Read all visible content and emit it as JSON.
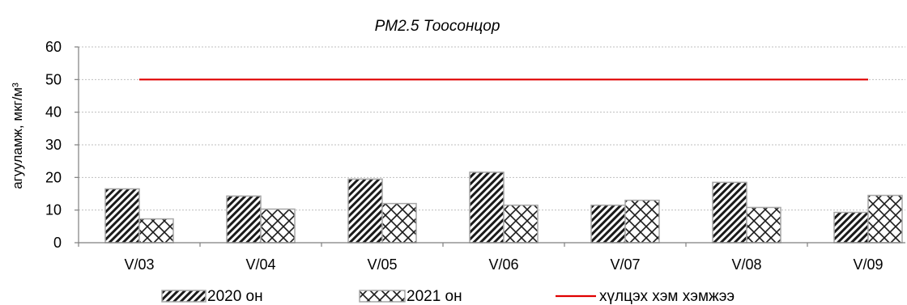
{
  "chart_data": {
    "type": "bar",
    "title": "PM2.5 Тоосонцор",
    "ylabel": "агууламж, мкг/м³",
    "xlabel": "",
    "categories": [
      "V/03",
      "V/04",
      "V/05",
      "V/06",
      "V/07",
      "V/08",
      "V/09"
    ],
    "ylim": [
      0,
      60
    ],
    "yticks": [
      0,
      10,
      20,
      30,
      40,
      50,
      60
    ],
    "grid": true,
    "legend_position": "bottom",
    "series": [
      {
        "name": "2020 он",
        "values": [
          16.5,
          14.3,
          19.5,
          21.6,
          11.5,
          18.5,
          9.3
        ],
        "pattern": "diagonal-lines"
      },
      {
        "name": "2021 он",
        "values": [
          7.3,
          10.3,
          12.0,
          11.5,
          13.0,
          10.8,
          14.5
        ],
        "pattern": "crosshatch"
      }
    ],
    "reference_line": {
      "name": "хүлцэх хэм хэмжээ",
      "value": 50,
      "color": "#e00000"
    }
  }
}
